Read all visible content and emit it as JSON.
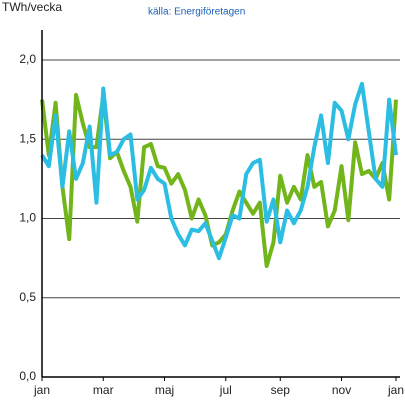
{
  "chart_data": {
    "type": "line",
    "title": "TWh/vecka",
    "subtitle": "källa: Energiföretagen",
    "categories": [
      "jan",
      null,
      null,
      null,
      null,
      null,
      null,
      null,
      null,
      "mar",
      null,
      null,
      null,
      null,
      null,
      null,
      null,
      null,
      "maj",
      null,
      null,
      null,
      null,
      null,
      null,
      null,
      null,
      "jul",
      null,
      null,
      null,
      null,
      null,
      null,
      null,
      "sep",
      null,
      null,
      null,
      null,
      null,
      null,
      null,
      null,
      "nov",
      null,
      null,
      null,
      null,
      null,
      null,
      null,
      "jan"
    ],
    "series": [
      {
        "name": "green",
        "color": "#72b51b",
        "values": [
          1.75,
          1.4,
          1.73,
          1.2,
          0.87,
          1.78,
          1.6,
          1.45,
          1.45,
          1.78,
          1.38,
          1.42,
          1.3,
          1.2,
          0.98,
          1.45,
          1.47,
          1.33,
          1.32,
          1.22,
          1.28,
          1.18,
          1.0,
          1.12,
          1.02,
          0.83,
          0.85,
          0.9,
          1.05,
          1.17,
          1.1,
          1.03,
          1.1,
          0.7,
          0.85,
          1.27,
          1.1,
          1.2,
          1.12,
          1.4,
          1.2,
          1.23,
          0.95,
          1.05,
          1.33,
          0.99,
          1.48,
          1.28,
          1.3,
          1.25,
          1.35,
          1.12,
          1.75
        ]
      },
      {
        "name": "cyan",
        "color": "#2cbde3",
        "values": [
          1.4,
          1.33,
          1.65,
          1.2,
          1.55,
          1.25,
          1.35,
          1.58,
          1.1,
          1.82,
          1.4,
          1.42,
          1.5,
          1.53,
          1.12,
          1.18,
          1.32,
          1.25,
          1.22,
          1.0,
          0.9,
          0.83,
          0.93,
          0.92,
          0.97,
          0.86,
          0.75,
          0.88,
          1.02,
          1.0,
          1.28,
          1.35,
          1.37,
          0.98,
          1.12,
          0.85,
          1.05,
          0.97,
          1.05,
          1.2,
          1.45,
          1.65,
          1.35,
          1.73,
          1.68,
          1.5,
          1.72,
          1.85,
          1.55,
          1.25,
          1.2,
          1.75,
          1.4
        ]
      }
    ],
    "ylim": [
      0,
      2
    ],
    "yticks": [
      {
        "value": 0,
        "label": "0,0"
      },
      {
        "value": 0.5,
        "label": "0,5"
      },
      {
        "value": 1,
        "label": "1,0"
      },
      {
        "value": 1.5,
        "label": "1,5"
      },
      {
        "value": 2,
        "label": "2,0"
      }
    ],
    "grid": true
  }
}
